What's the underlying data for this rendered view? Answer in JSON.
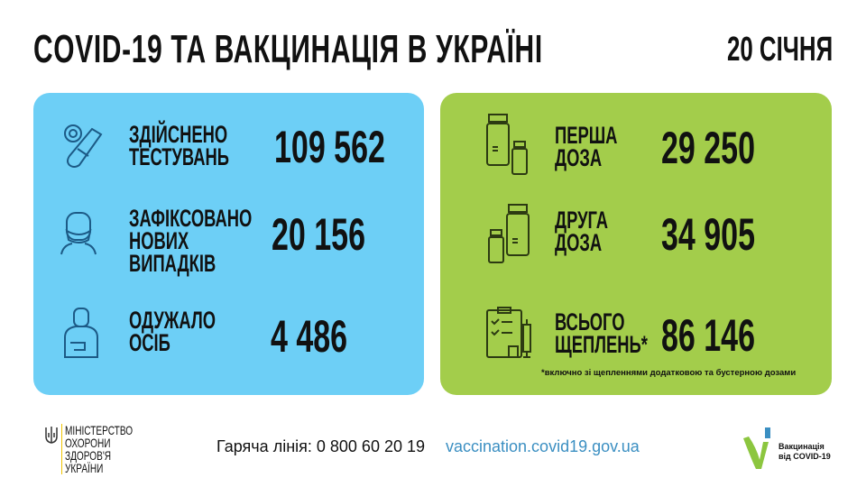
{
  "header": {
    "title": "COVID-19 ТА ВАКЦИНАЦІЯ В УКРАЇНІ",
    "date": "20 СІЧНЯ"
  },
  "cases": [
    {
      "icon": "test-tube-virus-icon",
      "label": [
        "ЗДІЙСНЕНО",
        "ТЕСТУВАНЬ"
      ],
      "value": "109 562"
    },
    {
      "icon": "masked-person-icon",
      "label": [
        "ЗАФІКСОВАНО",
        "НОВИХ",
        "ВИПАДКІВ"
      ],
      "value": "20 156"
    },
    {
      "icon": "recovered-person-icon",
      "label": [
        "ОДУЖАЛО",
        "ОСІБ"
      ],
      "value": "4 486"
    }
  ],
  "vaccination": [
    {
      "icon": "vaccine-vials-icon",
      "label": [
        "ПЕРША",
        "ДОЗА"
      ],
      "value": "29 250"
    },
    {
      "icon": "vaccine-vials-icon",
      "label": [
        "ДРУГА",
        "ДОЗА"
      ],
      "value": "34 905"
    },
    {
      "icon": "clipboard-syringe-icon",
      "label": [
        "ВСЬОГО",
        "ЩЕПЛЕНЬ*"
      ],
      "value": "86 146"
    }
  ],
  "footnote": "*включно зі щепленнями додатковою та бустерною дозами",
  "footer": {
    "ministry": [
      "МІНІСТЕРСТВО",
      "ОХОРОНИ",
      "ЗДОРОВ'Я",
      "УКРАЇНИ"
    ],
    "hotline": "Гаряча лінія: 0 800 60 20 19",
    "url": "vaccination.covid19.gov.ua",
    "campaign": [
      "Вакцинація",
      "від COVID-19"
    ]
  },
  "colors": {
    "blue_panel": "#6dcff6",
    "green_panel": "#a3cd4b",
    "icon_blue": "#1c5a86",
    "icon_green": "#2c3a12",
    "url": "#3b8fc2"
  }
}
